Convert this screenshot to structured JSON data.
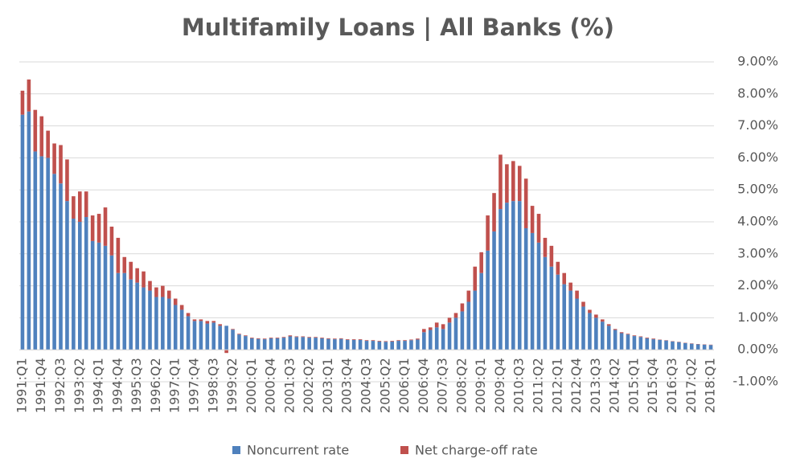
{
  "chart_data": {
    "type": "stacked-bar",
    "title": "Multifamily Loans | All Banks (%)",
    "categories": [
      "1991:Q1",
      null,
      null,
      "1991:Q4",
      null,
      null,
      "1992:Q3",
      null,
      null,
      "1993:Q2",
      null,
      null,
      "1994:Q1",
      null,
      null,
      "1994:Q4",
      null,
      null,
      "1995:Q3",
      null,
      null,
      "1996:Q2",
      null,
      null,
      "1997:Q1",
      null,
      null,
      "1997:Q4",
      null,
      null,
      "1998:Q3",
      null,
      null,
      "1999:Q2",
      null,
      null,
      "2000:Q1",
      null,
      null,
      "2000:Q4",
      null,
      null,
      "2001:Q3",
      null,
      null,
      "2002:Q2",
      null,
      null,
      "2003:Q1",
      null,
      null,
      "2003:Q4",
      null,
      null,
      "2004:Q3",
      null,
      null,
      "2005:Q2",
      null,
      null,
      "2006:Q1",
      null,
      null,
      "2006:Q4",
      null,
      null,
      "2007:Q3",
      null,
      null,
      "2008:Q2",
      null,
      null,
      "2009:Q1",
      null,
      null,
      "2009:Q4",
      null,
      null,
      "2010:Q3",
      null,
      null,
      "2011:Q2",
      null,
      null,
      "2012:Q1",
      null,
      null,
      "2012:Q4",
      null,
      null,
      "2013:Q3",
      null,
      null,
      "2014:Q2",
      null,
      null,
      "2015:Q1",
      null,
      null,
      "2015:Q4",
      null,
      null,
      "2016:Q3",
      null,
      null,
      "2017:Q2",
      null,
      null,
      "2018:Q1"
    ],
    "series": [
      {
        "name": "Noncurrent rate",
        "color": "#4f81bd",
        "values": [
          7.35,
          7.45,
          6.2,
          6.05,
          6.0,
          5.5,
          5.2,
          4.65,
          4.1,
          4.0,
          4.15,
          3.4,
          3.35,
          3.25,
          2.95,
          2.4,
          2.4,
          2.2,
          2.1,
          1.95,
          1.85,
          1.65,
          1.65,
          1.6,
          1.4,
          1.25,
          1.05,
          0.9,
          0.9,
          0.82,
          0.85,
          0.75,
          0.75,
          0.63,
          0.48,
          0.43,
          0.36,
          0.34,
          0.33,
          0.36,
          0.36,
          0.38,
          0.42,
          0.4,
          0.4,
          0.38,
          0.38,
          0.36,
          0.34,
          0.33,
          0.34,
          0.31,
          0.31,
          0.31,
          0.28,
          0.28,
          0.26,
          0.25,
          0.26,
          0.28,
          0.28,
          0.3,
          0.32,
          0.55,
          0.62,
          0.7,
          0.65,
          0.85,
          1.0,
          1.2,
          1.5,
          1.85,
          2.4,
          3.1,
          3.7,
          4.4,
          4.6,
          4.65,
          4.65,
          3.8,
          3.65,
          3.35,
          2.9,
          2.6,
          2.35,
          2.05,
          1.85,
          1.6,
          1.35,
          1.15,
          1.0,
          0.88,
          0.75,
          0.62,
          0.52,
          0.48,
          0.43,
          0.4,
          0.36,
          0.33,
          0.31,
          0.29,
          0.26,
          0.24,
          0.21,
          0.19,
          0.17,
          0.16,
          0.15
        ]
      },
      {
        "name": "Net charge-off rate",
        "color": "#c0504d",
        "values": [
          0.75,
          1.0,
          1.3,
          1.25,
          0.85,
          0.95,
          1.2,
          1.3,
          0.7,
          0.95,
          0.8,
          0.8,
          0.9,
          1.2,
          0.9,
          1.1,
          0.5,
          0.55,
          0.45,
          0.5,
          0.3,
          0.3,
          0.35,
          0.25,
          0.2,
          0.15,
          0.1,
          0.05,
          0.05,
          0.08,
          0.05,
          0.05,
          -0.1,
          0.02,
          0.02,
          0.02,
          0.02,
          0.02,
          0.02,
          0.02,
          0.02,
          0.02,
          0.03,
          0.02,
          0.02,
          0.02,
          0.02,
          0.02,
          0.02,
          0.02,
          0.02,
          0.02,
          0.02,
          0.02,
          0.02,
          0.02,
          0.02,
          0.02,
          0.02,
          0.02,
          0.02,
          0.02,
          0.03,
          0.1,
          0.08,
          0.15,
          0.15,
          0.15,
          0.15,
          0.25,
          0.35,
          0.75,
          0.65,
          1.1,
          1.2,
          1.7,
          1.2,
          1.25,
          1.1,
          1.55,
          0.85,
          0.9,
          0.6,
          0.65,
          0.4,
          0.35,
          0.25,
          0.25,
          0.15,
          0.1,
          0.1,
          0.07,
          0.05,
          0.03,
          0.03,
          0.02,
          0.02,
          0.02,
          0.02,
          0.02,
          0.01,
          0.01,
          0.01,
          0.01,
          0.01,
          0.01,
          0.01,
          0.01,
          0.01
        ]
      }
    ],
    "ylim": [
      -1,
      9
    ],
    "yticks": [
      {
        "value": -1,
        "label": "-1.00%"
      },
      {
        "value": 0,
        "label": "0.00%"
      },
      {
        "value": 1,
        "label": "1.00%"
      },
      {
        "value": 2,
        "label": "2.00%"
      },
      {
        "value": 3,
        "label": "3.00%"
      },
      {
        "value": 4,
        "label": "4.00%"
      },
      {
        "value": 5,
        "label": "5.00%"
      },
      {
        "value": 6,
        "label": "6.00%"
      },
      {
        "value": 7,
        "label": "7.00%"
      },
      {
        "value": 8,
        "label": "8.00%"
      },
      {
        "value": 9,
        "label": "9.00%"
      }
    ],
    "grid": true,
    "legend": "bottom"
  }
}
